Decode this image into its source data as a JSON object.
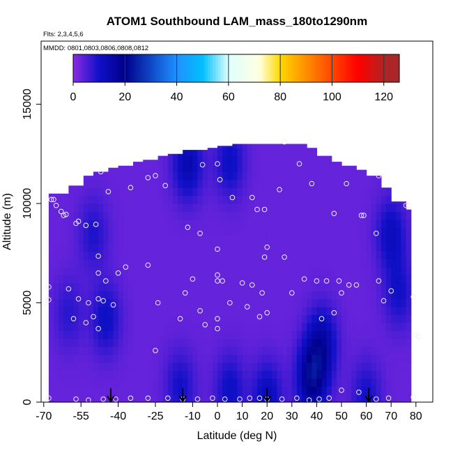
{
  "chart_data": {
    "type": "heatmap",
    "title": "ATOM1 Southbound LAM_mass_180to1290nm",
    "flights_label": "Flts: 2,3,4,5,6",
    "dates_label": "MMDD: 0801,0803,0806,0808,0812",
    "xlabel": "Latitude (deg N)",
    "ylabel": "Altitude (m)",
    "xlim": [
      -70,
      82
    ],
    "ylim": [
      0,
      17500
    ],
    "x_ticks": [
      -70,
      -55,
      -40,
      -25,
      -10,
      0,
      10,
      20,
      30,
      40,
      50,
      60,
      70,
      80
    ],
    "x_tick_labels": [
      "-70",
      "-55",
      "-40",
      "-25",
      "-10",
      "0",
      "10",
      "20",
      "30",
      "40",
      "50",
      "60",
      "70",
      "80"
    ],
    "y_ticks": [
      0,
      5000,
      10000,
      15000
    ],
    "y_tick_labels": [
      "0",
      "5000",
      "10000",
      "15000"
    ],
    "colorbar": {
      "range": [
        0,
        126
      ],
      "tick_values": [
        0,
        20,
        40,
        60,
        80,
        100,
        120
      ],
      "tick_labels": [
        "0",
        "20",
        "40",
        "60",
        "80",
        "100",
        "120"
      ],
      "stops": [
        {
          "v": 0,
          "c": "#8a2be2"
        },
        {
          "v": 10,
          "c": "#1010c8"
        },
        {
          "v": 20,
          "c": "#00008b"
        },
        {
          "v": 40,
          "c": "#1e90ff"
        },
        {
          "v": 50,
          "c": "#00bfff"
        },
        {
          "v": 60,
          "c": "#e0ffff"
        },
        {
          "v": 72,
          "c": "#ffffe0"
        },
        {
          "v": 80,
          "c": "#ffd700"
        },
        {
          "v": 100,
          "c": "#ff4500"
        },
        {
          "v": 110,
          "c": "#ff0000"
        },
        {
          "v": 120,
          "c": "#b22222"
        },
        {
          "v": 126,
          "c": "#a52a2a"
        }
      ],
      "boundaries": [
        20,
        40,
        60,
        80,
        100,
        120
      ]
    },
    "field_envelope": {
      "lat_edges": [
        -68,
        -65,
        -60,
        -55,
        -50,
        -45,
        -40,
        -35,
        -30,
        -25,
        -20,
        -15,
        -10,
        -5,
        0,
        5,
        10,
        15,
        20,
        25,
        30,
        35,
        40,
        45,
        50,
        55,
        60,
        65,
        70,
        75,
        78
      ],
      "max_alt": [
        10500,
        10500,
        10900,
        11400,
        11600,
        11800,
        11900,
        12100,
        12200,
        12400,
        12500,
        12700,
        12700,
        12800,
        12900,
        13000,
        13000,
        13000,
        13000,
        13000,
        13000,
        12800,
        12400,
        12100,
        11900,
        11700,
        11400,
        10800,
        10100,
        9700,
        5000
      ]
    },
    "background_value": 3,
    "enhanced_regions": [
      {
        "lat": -12,
        "alt": 12000,
        "value": 14
      },
      {
        "lat": 5,
        "alt": 12100,
        "value": 11
      },
      {
        "lat": -60,
        "alt": 4500,
        "value": 8
      },
      {
        "lat": -50,
        "alt": 8500,
        "value": 9
      },
      {
        "lat": -45,
        "alt": 4200,
        "value": 11
      },
      {
        "lat": 70,
        "alt": 8500,
        "value": 12
      },
      {
        "lat": 73,
        "alt": 5500,
        "value": 10
      },
      {
        "lat": -15,
        "alt": 800,
        "value": 10
      },
      {
        "lat": 5,
        "alt": 600,
        "value": 11
      },
      {
        "lat": 20,
        "alt": 200,
        "value": 13
      },
      {
        "lat": 38,
        "alt": 1200,
        "value": 20
      },
      {
        "lat": 42,
        "alt": 3000,
        "value": 15
      },
      {
        "lat": 60,
        "alt": 300,
        "value": 10
      }
    ],
    "sample_points": [
      {
        "lat": -67,
        "alt": 10200
      },
      {
        "lat": -66,
        "alt": 10200
      },
      {
        "lat": -65,
        "alt": 9900
      },
      {
        "lat": -63,
        "alt": 9600
      },
      {
        "lat": -62,
        "alt": 9400
      },
      {
        "lat": -61,
        "alt": 9450
      },
      {
        "lat": -57,
        "alt": 9000
      },
      {
        "lat": -56,
        "alt": 9100
      },
      {
        "lat": -53,
        "alt": 8900
      },
      {
        "lat": -49,
        "alt": 8950
      },
      {
        "lat": -48,
        "alt": 7350
      },
      {
        "lat": -48,
        "alt": 6500
      },
      {
        "lat": -68,
        "alt": 5800
      },
      {
        "lat": -68,
        "alt": 5150
      },
      {
        "lat": -60,
        "alt": 5700
      },
      {
        "lat": -56,
        "alt": 5200
      },
      {
        "lat": -52,
        "alt": 5000
      },
      {
        "lat": -48,
        "alt": 5200
      },
      {
        "lat": -46,
        "alt": 5100
      },
      {
        "lat": -50,
        "alt": 4300
      },
      {
        "lat": -58,
        "alt": 4200
      },
      {
        "lat": -53,
        "alt": 4000
      },
      {
        "lat": -48,
        "alt": 3700
      },
      {
        "lat": -45,
        "alt": 6100
      },
      {
        "lat": -40,
        "alt": 6500
      },
      {
        "lat": -37,
        "alt": 6800
      },
      {
        "lat": -42,
        "alt": 4900
      },
      {
        "lat": -28,
        "alt": 6900
      },
      {
        "lat": -24,
        "alt": 5000
      },
      {
        "lat": -21,
        "alt": 10900
      },
      {
        "lat": -35,
        "alt": 10800
      },
      {
        "lat": -44,
        "alt": 10600
      },
      {
        "lat": -28,
        "alt": 11300
      },
      {
        "lat": -25,
        "alt": 11400
      },
      {
        "lat": -47,
        "alt": 11600
      },
      {
        "lat": -6,
        "alt": 11950
      },
      {
        "lat": 0,
        "alt": 12000
      },
      {
        "lat": 1,
        "alt": 11200
      },
      {
        "lat": -12,
        "alt": 8800
      },
      {
        "lat": -7,
        "alt": 8500
      },
      {
        "lat": -10,
        "alt": 6200
      },
      {
        "lat": -13,
        "alt": 5500
      },
      {
        "lat": -7,
        "alt": 4600
      },
      {
        "lat": -5,
        "alt": 3900
      },
      {
        "lat": 0,
        "alt": 6100
      },
      {
        "lat": 0,
        "alt": 6400
      },
      {
        "lat": 2,
        "alt": 6100
      },
      {
        "lat": 0,
        "alt": 4200
      },
      {
        "lat": 0,
        "alt": 3700
      },
      {
        "lat": -15,
        "alt": 4200
      },
      {
        "lat": -25,
        "alt": 2600
      },
      {
        "lat": 6,
        "alt": 10300
      },
      {
        "lat": 14,
        "alt": 10300
      },
      {
        "lat": 16,
        "alt": 9700
      },
      {
        "lat": 19,
        "alt": 9700
      },
      {
        "lat": 0,
        "alt": 7700
      },
      {
        "lat": 5,
        "alt": 5000
      },
      {
        "lat": 10,
        "alt": 6000
      },
      {
        "lat": 14,
        "alt": 5900
      },
      {
        "lat": 18,
        "alt": 5500
      },
      {
        "lat": 12,
        "alt": 4800
      },
      {
        "lat": 17,
        "alt": 4300
      },
      {
        "lat": 20,
        "alt": 4500
      },
      {
        "lat": 19,
        "alt": 7300
      },
      {
        "lat": 20,
        "alt": 7800
      },
      {
        "lat": 27,
        "alt": 7300
      },
      {
        "lat": 25,
        "alt": 10700
      },
      {
        "lat": 33,
        "alt": 12000
      },
      {
        "lat": 38,
        "alt": 11000
      },
      {
        "lat": 27,
        "alt": 13100
      },
      {
        "lat": 30,
        "alt": 5500
      },
      {
        "lat": 35,
        "alt": 6200
      },
      {
        "lat": 40,
        "alt": 6100
      },
      {
        "lat": 44,
        "alt": 6100
      },
      {
        "lat": 49,
        "alt": 6100
      },
      {
        "lat": 50,
        "alt": 5500
      },
      {
        "lat": 47,
        "alt": 9500
      },
      {
        "lat": 52,
        "alt": 11000
      },
      {
        "lat": 58,
        "alt": 9400
      },
      {
        "lat": 59,
        "alt": 9400
      },
      {
        "lat": 56,
        "alt": 5900
      },
      {
        "lat": 53,
        "alt": 5900
      },
      {
        "lat": 42,
        "alt": 4200
      },
      {
        "lat": 47,
        "alt": 4500
      },
      {
        "lat": 65,
        "alt": 11400
      },
      {
        "lat": 64,
        "alt": 8500
      },
      {
        "lat": 65,
        "alt": 6100
      },
      {
        "lat": 67,
        "alt": 5100
      },
      {
        "lat": 70,
        "alt": 5600
      },
      {
        "lat": 76,
        "alt": 9900
      },
      {
        "lat": 77,
        "alt": 9900
      },
      {
        "lat": 79,
        "alt": 5300
      },
      {
        "lat": 80,
        "alt": 3400
      },
      {
        "lat": 81,
        "alt": 3300
      },
      {
        "lat": -68,
        "alt": 200
      },
      {
        "lat": -57,
        "alt": 150
      },
      {
        "lat": -52,
        "alt": 100
      },
      {
        "lat": -46,
        "alt": 150
      },
      {
        "lat": -41,
        "alt": 150
      },
      {
        "lat": -35,
        "alt": 200
      },
      {
        "lat": -28,
        "alt": 200
      },
      {
        "lat": -20,
        "alt": 200
      },
      {
        "lat": -14,
        "alt": 150
      },
      {
        "lat": -8,
        "alt": 150
      },
      {
        "lat": -2,
        "alt": 200
      },
      {
        "lat": 3,
        "alt": 150
      },
      {
        "lat": 9,
        "alt": 150
      },
      {
        "lat": 13,
        "alt": 200
      },
      {
        "lat": 17,
        "alt": 200
      },
      {
        "lat": 20,
        "alt": 150
      },
      {
        "lat": 26,
        "alt": 150
      },
      {
        "lat": 32,
        "alt": 200
      },
      {
        "lat": 37,
        "alt": 100
      },
      {
        "lat": 41,
        "alt": 150
      },
      {
        "lat": 45,
        "alt": 200
      },
      {
        "lat": 50,
        "alt": 600
      },
      {
        "lat": 57,
        "alt": 500
      },
      {
        "lat": 64,
        "alt": 150
      },
      {
        "lat": 69,
        "alt": 200
      },
      {
        "lat": 79,
        "alt": 250
      }
    ],
    "arrow_markers": [
      {
        "lat": -43,
        "alt": 0
      },
      {
        "lat": -14,
        "alt": 0
      },
      {
        "lat": 20,
        "alt": 0
      },
      {
        "lat": 61,
        "alt": 0
      }
    ]
  }
}
